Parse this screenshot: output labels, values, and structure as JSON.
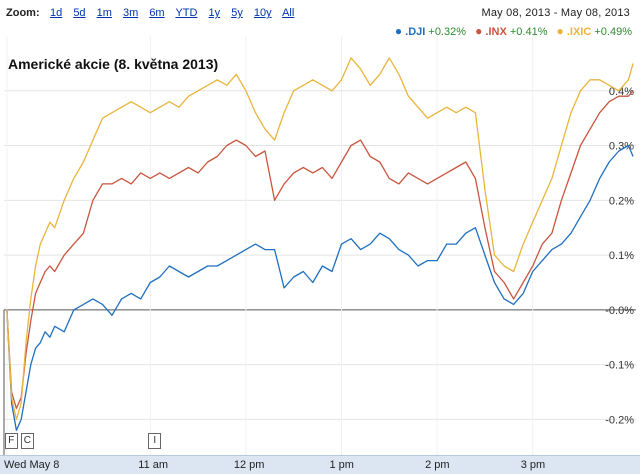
{
  "toolbar": {
    "zoom_label": "Zoom:",
    "zoom_options": [
      "1d",
      "5d",
      "1m",
      "3m",
      "6m",
      "YTD",
      "1y",
      "5y",
      "10y",
      "All"
    ],
    "date_range": "May 08, 2013  -  May 08, 2013"
  },
  "legend": [
    {
      "name": ".DJI",
      "change": "+0.32%",
      "color": "#1f6fbf"
    },
    {
      "name": ".INX",
      "change": "+0.41%",
      "color": "#c8553d"
    },
    {
      "name": ".IXIC",
      "change": "+0.49%",
      "color": "#e8b53c"
    }
  ],
  "markers": [
    {
      "label": "F",
      "time": 9.5
    },
    {
      "label": "C",
      "time": 9.58
    },
    {
      "label": "I",
      "time": 11.0
    }
  ],
  "chart_data": {
    "type": "line",
    "title": "Americké akcie (8. května 2013)",
    "xlabel": "",
    "ylabel": "",
    "xlim": [
      9.47,
      16.08
    ],
    "ylim": [
      -0.265,
      0.5
    ],
    "x_ticks": [
      {
        "label": "Wed May 8",
        "value": 9.5
      },
      {
        "label": "11 am",
        "value": 11.0
      },
      {
        "label": "12 pm",
        "value": 12.0
      },
      {
        "label": "1 pm",
        "value": 13.0
      },
      {
        "label": "2 pm",
        "value": 14.0
      },
      {
        "label": "3 pm",
        "value": 15.0
      }
    ],
    "y_ticks": [
      {
        "label": "0.4%",
        "value": 0.4
      },
      {
        "label": "0.3%",
        "value": 0.3
      },
      {
        "label": "0.2%",
        "value": 0.2
      },
      {
        "label": "0.1%",
        "value": 0.1
      },
      {
        "label": "-0.0%",
        "value": 0.0
      },
      {
        "label": "-0.1%",
        "value": -0.1
      },
      {
        "label": "-0.2%",
        "value": -0.2
      }
    ],
    "grid": true,
    "legend_position": "top-right",
    "x": [
      9.5,
      9.55,
      9.6,
      9.65,
      9.7,
      9.75,
      9.8,
      9.85,
      9.9,
      9.95,
      10.0,
      10.1,
      10.2,
      10.3,
      10.4,
      10.5,
      10.6,
      10.7,
      10.8,
      10.9,
      11.0,
      11.1,
      11.2,
      11.3,
      11.4,
      11.5,
      11.6,
      11.7,
      11.8,
      11.9,
      12.0,
      12.1,
      12.2,
      12.3,
      12.4,
      12.5,
      12.6,
      12.7,
      12.8,
      12.9,
      13.0,
      13.1,
      13.2,
      13.3,
      13.4,
      13.5,
      13.6,
      13.7,
      13.8,
      13.9,
      14.0,
      14.1,
      14.2,
      14.3,
      14.4,
      14.5,
      14.6,
      14.7,
      14.8,
      14.9,
      15.0,
      15.1,
      15.2,
      15.3,
      15.4,
      15.5,
      15.6,
      15.7,
      15.8,
      15.9,
      16.0,
      16.05
    ],
    "series": [
      {
        "name": ".DJI",
        "color": "#1f6fbf",
        "values": [
          0.0,
          -0.17,
          -0.22,
          -0.2,
          -0.15,
          -0.1,
          -0.07,
          -0.06,
          -0.04,
          -0.05,
          -0.03,
          -0.04,
          0.0,
          0.01,
          0.02,
          0.01,
          -0.01,
          0.02,
          0.03,
          0.02,
          0.05,
          0.06,
          0.08,
          0.07,
          0.06,
          0.07,
          0.08,
          0.08,
          0.09,
          0.1,
          0.11,
          0.12,
          0.11,
          0.11,
          0.04,
          0.06,
          0.07,
          0.05,
          0.08,
          0.07,
          0.12,
          0.13,
          0.11,
          0.12,
          0.14,
          0.13,
          0.11,
          0.1,
          0.08,
          0.09,
          0.09,
          0.12,
          0.12,
          0.14,
          0.15,
          0.1,
          0.05,
          0.02,
          0.01,
          0.03,
          0.07,
          0.09,
          0.11,
          0.12,
          0.14,
          0.17,
          0.2,
          0.24,
          0.27,
          0.29,
          0.3,
          0.28
        ]
      },
      {
        "name": ".INX",
        "color": "#c8553d",
        "values": [
          0.0,
          -0.15,
          -0.18,
          -0.16,
          -0.08,
          -0.02,
          0.03,
          0.05,
          0.07,
          0.08,
          0.07,
          0.1,
          0.12,
          0.14,
          0.2,
          0.23,
          0.23,
          0.24,
          0.23,
          0.25,
          0.24,
          0.25,
          0.24,
          0.25,
          0.26,
          0.25,
          0.27,
          0.28,
          0.3,
          0.31,
          0.3,
          0.28,
          0.29,
          0.2,
          0.23,
          0.25,
          0.26,
          0.25,
          0.26,
          0.24,
          0.27,
          0.3,
          0.31,
          0.28,
          0.27,
          0.24,
          0.23,
          0.25,
          0.24,
          0.23,
          0.24,
          0.25,
          0.26,
          0.27,
          0.24,
          0.15,
          0.07,
          0.05,
          0.02,
          0.05,
          0.08,
          0.12,
          0.14,
          0.2,
          0.25,
          0.3,
          0.33,
          0.36,
          0.38,
          0.39,
          0.39,
          0.4
        ]
      },
      {
        "name": ".IXIC",
        "color": "#e8b53c",
        "values": [
          0.0,
          -0.16,
          -0.2,
          -0.17,
          -0.06,
          0.02,
          0.08,
          0.12,
          0.14,
          0.16,
          0.15,
          0.2,
          0.24,
          0.27,
          0.31,
          0.35,
          0.36,
          0.37,
          0.38,
          0.37,
          0.36,
          0.37,
          0.38,
          0.37,
          0.39,
          0.4,
          0.41,
          0.42,
          0.41,
          0.43,
          0.4,
          0.36,
          0.33,
          0.31,
          0.36,
          0.4,
          0.41,
          0.42,
          0.41,
          0.4,
          0.42,
          0.46,
          0.44,
          0.41,
          0.43,
          0.46,
          0.43,
          0.39,
          0.37,
          0.35,
          0.36,
          0.37,
          0.36,
          0.37,
          0.36,
          0.22,
          0.1,
          0.08,
          0.07,
          0.12,
          0.16,
          0.2,
          0.24,
          0.3,
          0.36,
          0.4,
          0.42,
          0.42,
          0.41,
          0.4,
          0.42,
          0.45
        ]
      }
    ]
  }
}
